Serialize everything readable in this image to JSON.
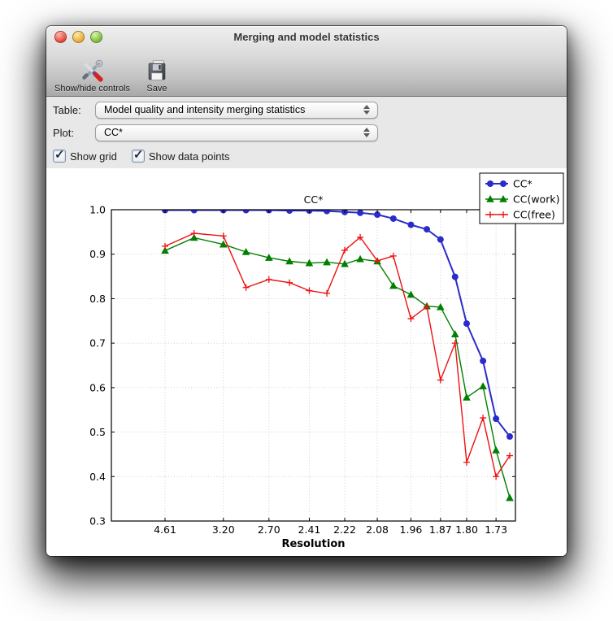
{
  "window": {
    "title": "Merging and model statistics",
    "toolbar": [
      {
        "label": "Show/hide controls",
        "icon": "tools-icon"
      },
      {
        "label": "Save",
        "icon": "save-icon"
      }
    ],
    "controls": {
      "table_label": "Table:",
      "table_value": "Model quality and intensity merging statistics",
      "plot_label": "Plot:",
      "plot_value": "CC*",
      "checkboxes": [
        {
          "label": "Show grid",
          "checked": true
        },
        {
          "label": "Show data points",
          "checked": true
        }
      ]
    }
  },
  "chart_data": {
    "type": "line",
    "title": "CC*",
    "xlabel": "Resolution",
    "ylabel": "",
    "x_axis_note": "resolution bins, spacing linear in 1/d^2",
    "x_bins_d": [
      4.61,
      3.72,
      3.2,
      2.92,
      2.7,
      2.54,
      2.41,
      2.31,
      2.22,
      2.15,
      2.08,
      2.02,
      1.96,
      1.91,
      1.87,
      1.83,
      1.8,
      1.76,
      1.73,
      1.7
    ],
    "x_tick_labels": [
      "4.61",
      "3.20",
      "2.70",
      "2.41",
      "2.22",
      "2.08",
      "1.96",
      "1.87",
      "1.80",
      "1.73"
    ],
    "y_ticks": [
      1.0,
      0.9,
      0.8,
      0.7,
      0.6,
      0.5,
      0.4,
      0.3
    ],
    "ylim": [
      0.3,
      1.0
    ],
    "grid": true,
    "legend_position": "upper-right outside axes",
    "series": [
      {
        "name": "CC*",
        "color": "#2b2bcc",
        "marker": "circle",
        "values": [
          0.999,
          0.999,
          0.999,
          0.999,
          0.999,
          0.998,
          0.998,
          0.997,
          0.995,
          0.993,
          0.989,
          0.98,
          0.966,
          0.956,
          0.933,
          0.849,
          0.744,
          0.66,
          0.53,
          0.49
        ]
      },
      {
        "name": "CC(work)",
        "color": "#007f00",
        "marker": "triangle",
        "values": [
          0.908,
          0.937,
          0.922,
          0.905,
          0.892,
          0.884,
          0.88,
          0.882,
          0.878,
          0.889,
          0.884,
          0.829,
          0.809,
          0.783,
          0.781,
          0.72,
          0.578,
          0.603,
          0.459,
          0.352
        ]
      },
      {
        "name": "CC(free)",
        "color": "#ee1111",
        "marker": "plus",
        "values": [
          0.918,
          0.947,
          0.941,
          0.825,
          0.843,
          0.836,
          0.818,
          0.812,
          0.909,
          0.938,
          0.885,
          0.896,
          0.755,
          0.782,
          0.617,
          0.7,
          0.432,
          0.532,
          0.4,
          0.447
        ]
      }
    ]
  }
}
